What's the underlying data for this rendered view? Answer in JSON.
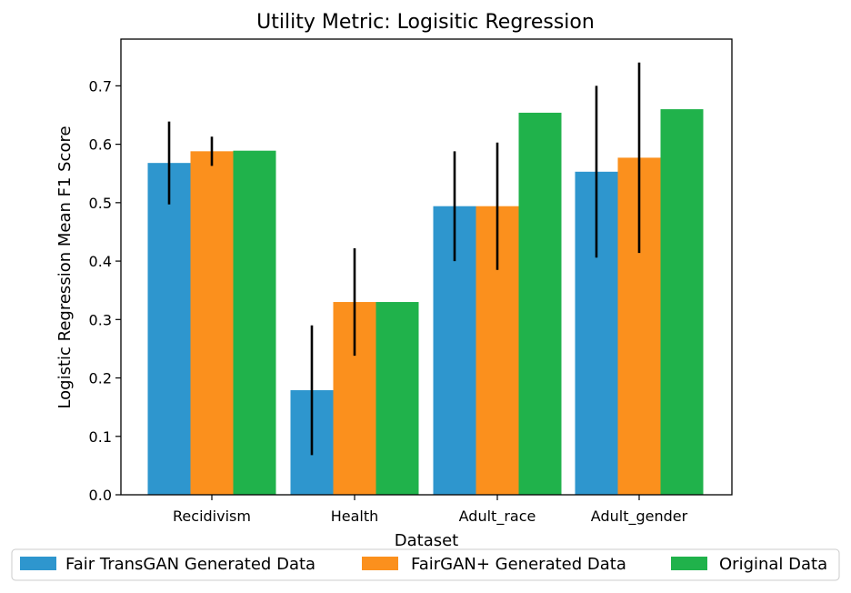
{
  "chart_data": {
    "type": "bar",
    "title": "Utility Metric: Logisitic Regression",
    "xlabel": "Dataset",
    "ylabel": "Logistic Regression Mean F1 Score",
    "ylim": [
      0,
      0.78
    ],
    "yticks": [
      0.0,
      0.1,
      0.2,
      0.3,
      0.4,
      0.5,
      0.6,
      0.7
    ],
    "ytick_labels": [
      "0.0",
      "0.1",
      "0.2",
      "0.3",
      "0.4",
      "0.5",
      "0.6",
      "0.7"
    ],
    "categories": [
      "Recidivism",
      "Health",
      "Adult_race",
      "Adult_gender"
    ],
    "series": [
      {
        "name": "Fair TransGAN Generated Data",
        "color": "#2e96ce",
        "values": [
          0.568,
          0.179,
          0.494,
          0.553
        ],
        "errors": [
          0.071,
          0.111,
          0.094,
          0.147
        ]
      },
      {
        "name": "FairGAN+ Generated Data",
        "color": "#fb901d",
        "values": [
          0.588,
          0.33,
          0.494,
          0.577
        ],
        "errors": [
          0.025,
          0.092,
          0.109,
          0.163
        ]
      },
      {
        "name": "Original Data",
        "color": "#20b24b",
        "values": [
          0.589,
          0.33,
          0.654,
          0.66
        ],
        "errors": [
          0,
          0,
          0,
          0
        ]
      }
    ],
    "grid": false,
    "legend_position": "bottom"
  }
}
